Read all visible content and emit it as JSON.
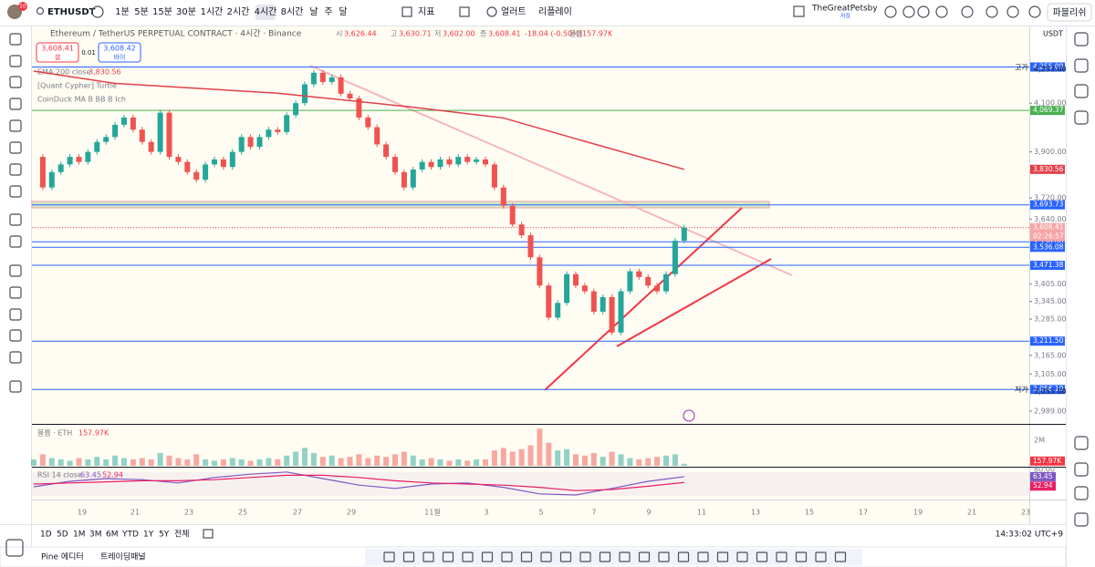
{
  "toolbar": {
    "symbol": "ETHUSDT",
    "intervals": [
      "1분",
      "5분",
      "15분",
      "30분",
      "1시간",
      "2시간",
      "4시간",
      "8시간",
      "날",
      "주",
      "달"
    ],
    "indicators": "지표",
    "alert": "얼러트",
    "replay": "리플레이",
    "user": "TheGreatPetsby",
    "save": "저장",
    "publish": "파블리쉬",
    "avatar_badge": "10"
  },
  "legend": {
    "title": "Ethereum / TetherUS PERPETUAL CONTRACT · 4시간 · Binance",
    "ohlc": [
      {
        "key": "시",
        "value": "3,626.44"
      },
      {
        "key": "고",
        "value": "3,630.71"
      },
      {
        "key": "저",
        "value": "3,602.00"
      },
      {
        "key": "종",
        "value": "3,608.41"
      }
    ],
    "change": "-18.04 (-0.50%)",
    "volume_key": "볼륨",
    "volume": "157.97K",
    "sell": "3,608.41",
    "sell_label": "셀",
    "spread": "0.01",
    "buy": "3,608.42",
    "buy_label": "바이",
    "indicators": [
      "EMA 200 close",
      "[Quant Cypher]  Turtle",
      "CoinDuck MA B BB B Ich"
    ]
  },
  "chart_data": {
    "type": "candlestick",
    "currency": "USDT",
    "log_scale": true,
    "ylim": [
      2950,
      4440
    ],
    "yticks": [
      {
        "value": 4100,
        "label": "4,100.00"
      },
      {
        "value": 3900,
        "label": "3,900.00"
      },
      {
        "value": 3720,
        "label": "3,720.00"
      },
      {
        "value": 3640,
        "label": "3,640.00"
      },
      {
        "value": 3405,
        "label": "3,405.00"
      },
      {
        "value": 3345,
        "label": "3,345.00"
      },
      {
        "value": 3285,
        "label": "3,285.00"
      },
      {
        "value": 3165,
        "label": "3,165.00"
      },
      {
        "value": 3105,
        "label": "3,105.00"
      },
      {
        "value": 2989,
        "label": "2,989.00"
      }
    ],
    "x_labels": [
      "19",
      "21",
      "23",
      "25",
      "27",
      "29",
      "11월",
      "3",
      "5",
      "7",
      "9",
      "11",
      "13",
      "15",
      "17",
      "19",
      "21",
      "23"
    ],
    "up_color": "#26a69a",
    "down_color": "#ef5350",
    "closes": [
      3880,
      3760,
      3820,
      3850,
      3880,
      3860,
      3900,
      3940,
      3960,
      4010,
      4040,
      3990,
      3940,
      3900,
      4060,
      3880,
      3860,
      3820,
      3790,
      3850,
      3870,
      3840,
      3900,
      3960,
      3920,
      3960,
      3990,
      3980,
      4050,
      4100,
      4180,
      4230,
      4190,
      4210,
      4140,
      4120,
      4040,
      4000,
      3930,
      3880,
      3820,
      3760,
      3830,
      3860,
      3840,
      3870,
      3850,
      3880,
      3860,
      3870,
      3850,
      3760,
      3690,
      3620,
      3580,
      3500,
      3400,
      3290,
      3340,
      3440,
      3400,
      3380,
      3310,
      3360,
      3240,
      3380,
      3450,
      3430,
      3400,
      3380,
      3440,
      3560,
      3608.41
    ],
    "levels": [
      {
        "value": 4255,
        "label": "4,255.00",
        "color": "#2962ff"
      },
      {
        "value": 4069.37,
        "label": "4,069.37",
        "color": "#4caf50"
      },
      {
        "value": 3693.73,
        "label": "3,693.73",
        "color": "#2962ff"
      },
      {
        "value": 3556,
        "label": "3,556.00",
        "color": "#2962ff"
      },
      {
        "value": 3536.08,
        "label": "3,536.08",
        "color": "#2962ff"
      },
      {
        "value": 3471.38,
        "label": "3,471.38",
        "color": "#2962ff"
      },
      {
        "value": 3211.5,
        "label": "3,211.50",
        "color": "#2962ff"
      },
      {
        "value": 3056.1,
        "label": "3,056.10",
        "color": "#2962ff"
      }
    ],
    "last_price": {
      "value": 3608.41,
      "label": "3,608.41",
      "countdown": "02:26:57",
      "color": "#f23645"
    },
    "high": {
      "label": "고가",
      "value": 4253,
      "text": "4,253.00"
    },
    "low": {
      "label": "저가",
      "value": 3055,
      "text": "3,055.00"
    },
    "ema": {
      "x": [
        0,
        9,
        27,
        42,
        52,
        62,
        72
      ],
      "values": [
        4237,
        4184,
        4142,
        4083,
        4038,
        3932,
        3830.56
      ],
      "last": {
        "value": 3830.56,
        "label": "3,830.56"
      },
      "color": "#e0404a"
    },
    "volume": {
      "title": "볼륨 · ETH",
      "ylim": [
        0,
        3.2
      ],
      "yticks": [
        {
          "value": 2,
          "label": "2M"
        }
      ],
      "last": {
        "value": 0.15797,
        "label": "157.97K"
      },
      "values": [
        0.5,
        0.9,
        0.6,
        0.5,
        0.4,
        0.6,
        0.5,
        0.7,
        0.5,
        0.8,
        0.6,
        0.5,
        0.6,
        0.5,
        1.0,
        0.8,
        0.6,
        0.5,
        0.9,
        0.5,
        0.4,
        0.5,
        0.6,
        0.5,
        0.4,
        0.5,
        0.6,
        0.5,
        0.8,
        1.1,
        1.4,
        1.0,
        0.7,
        0.8,
        0.6,
        0.7,
        0.9,
        0.6,
        0.8,
        0.7,
        0.9,
        1.1,
        0.8,
        0.5,
        0.6,
        0.5,
        0.4,
        0.5,
        0.4,
        0.5,
        0.5,
        1.2,
        1.4,
        1.1,
        1.3,
        1.6,
        2.9,
        1.8,
        1.2,
        1.3,
        0.9,
        0.8,
        1.0,
        0.7,
        1.1,
        0.9,
        0.6,
        0.5,
        0.6,
        0.7,
        0.8,
        0.9,
        0.15797
      ]
    },
    "rsi": {
      "name": "RSI 14 close",
      "ylim": [
        20,
        80
      ],
      "yticks": [
        {
          "value": 80,
          "label": "80.00"
        }
      ],
      "x": [
        0,
        4,
        8,
        12,
        16,
        20,
        24,
        28,
        32,
        36,
        40,
        44,
        48,
        52,
        56,
        60,
        64,
        68,
        72
      ],
      "values": [
        45,
        55,
        60,
        58,
        52,
        62,
        68,
        72,
        60,
        48,
        42,
        50,
        52,
        44,
        32,
        30,
        42,
        55,
        63.45
      ],
      "ma": [
        50,
        52,
        54,
        56,
        56,
        58,
        62,
        66,
        66,
        62,
        56,
        52,
        50,
        48,
        44,
        38,
        40,
        46,
        52.94
      ],
      "color": "#7e57c2",
      "ma_color": "#e91e63",
      "last": {
        "value": 63.45,
        "label": "63.45"
      },
      "ma_last": {
        "value": 52.94,
        "label": "52.94"
      }
    }
  },
  "range_bar": {
    "ranges": [
      "1D",
      "5D",
      "1M",
      "3M",
      "6M",
      "YTD",
      "1Y",
      "5Y",
      "전체"
    ],
    "clock": "14:33:02 UTC+9"
  },
  "bottom_panel": {
    "tabs": [
      "Pine 에디터",
      "트레이딩패널"
    ]
  }
}
